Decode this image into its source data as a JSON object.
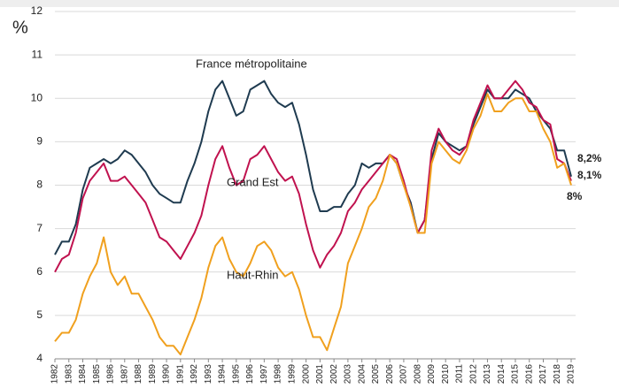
{
  "chart_data": {
    "type": "line",
    "y_unit": "%",
    "x": [
      1982,
      1982.5,
      1983,
      1983.5,
      1984,
      1984.5,
      1985,
      1985.5,
      1986,
      1986.5,
      1987,
      1987.5,
      1988,
      1988.5,
      1989,
      1989.5,
      1990,
      1990.5,
      1991,
      1991.5,
      1992,
      1992.5,
      1993,
      1993.5,
      1994,
      1994.5,
      1995,
      1995.5,
      1996,
      1996.5,
      1997,
      1997.5,
      1998,
      1998.5,
      1999,
      1999.5,
      2000,
      2000.5,
      2001,
      2001.5,
      2002,
      2002.5,
      2003,
      2003.5,
      2004,
      2004.5,
      2005,
      2005.5,
      2006,
      2006.5,
      2007,
      2007.5,
      2008,
      2008.5,
      2009,
      2009.5,
      2010,
      2010.5,
      2011,
      2011.5,
      2012,
      2012.5,
      2013,
      2013.5,
      2014,
      2014.5,
      2015,
      2015.5,
      2016,
      2016.5,
      2017,
      2017.5,
      2018,
      2018.5,
      2019
    ],
    "series": [
      {
        "name": "France métropolitaine",
        "color": "#1f3b50",
        "end_label": "8,2%",
        "values": [
          6.4,
          6.7,
          6.7,
          7.1,
          7.9,
          8.4,
          8.5,
          8.6,
          8.5,
          8.6,
          8.8,
          8.7,
          8.5,
          8.3,
          8.0,
          7.8,
          7.7,
          7.6,
          7.6,
          8.1,
          8.5,
          9.0,
          9.7,
          10.2,
          10.4,
          10.0,
          9.6,
          9.7,
          10.2,
          10.3,
          10.4,
          10.1,
          9.9,
          9.8,
          9.9,
          9.4,
          8.7,
          7.9,
          7.4,
          7.4,
          7.5,
          7.5,
          7.8,
          8.0,
          8.5,
          8.4,
          8.5,
          8.5,
          8.7,
          8.5,
          8.0,
          7.6,
          6.9,
          7.2,
          8.6,
          9.2,
          9.0,
          8.9,
          8.8,
          8.9,
          9.4,
          9.8,
          10.2,
          10.0,
          10.0,
          10.0,
          10.2,
          10.1,
          10.0,
          9.7,
          9.5,
          9.3,
          8.8,
          8.8,
          8.2
        ]
      },
      {
        "name": "Grand Est",
        "color": "#c0124f",
        "end_label": "8,1%",
        "values": [
          6.0,
          6.3,
          6.4,
          6.9,
          7.7,
          8.1,
          8.3,
          8.5,
          8.1,
          8.1,
          8.2,
          8.0,
          7.8,
          7.6,
          7.2,
          6.8,
          6.7,
          6.5,
          6.3,
          6.6,
          6.9,
          7.3,
          8.0,
          8.6,
          8.9,
          8.4,
          8.0,
          8.1,
          8.6,
          8.7,
          8.9,
          8.6,
          8.3,
          8.1,
          8.2,
          7.8,
          7.1,
          6.5,
          6.1,
          6.4,
          6.6,
          6.9,
          7.4,
          7.6,
          7.9,
          8.1,
          8.3,
          8.5,
          8.7,
          8.6,
          8.1,
          7.5,
          6.9,
          7.2,
          8.8,
          9.3,
          9.0,
          8.8,
          8.7,
          8.9,
          9.5,
          9.9,
          10.3,
          10.0,
          10.0,
          10.2,
          10.4,
          10.2,
          9.9,
          9.8,
          9.5,
          9.4,
          8.6,
          8.5,
          8.1
        ]
      },
      {
        "name": "Haut-Rhin",
        "color": "#f0a01e",
        "end_label": "8%",
        "values": [
          4.4,
          4.6,
          4.6,
          4.9,
          5.5,
          5.9,
          6.2,
          6.8,
          6.0,
          5.7,
          5.9,
          5.5,
          5.5,
          5.2,
          4.9,
          4.5,
          4.3,
          4.3,
          4.1,
          4.5,
          4.9,
          5.4,
          6.1,
          6.6,
          6.8,
          6.3,
          6.0,
          5.9,
          6.2,
          6.6,
          6.7,
          6.5,
          6.1,
          5.9,
          6.0,
          5.6,
          5.0,
          4.5,
          4.5,
          4.2,
          4.7,
          5.2,
          6.2,
          6.6,
          7.0,
          7.5,
          7.7,
          8.1,
          8.7,
          8.5,
          8.0,
          7.5,
          6.9,
          6.9,
          8.5,
          9.0,
          8.8,
          8.6,
          8.5,
          8.8,
          9.3,
          9.6,
          10.1,
          9.7,
          9.7,
          9.9,
          10.0,
          10.0,
          9.7,
          9.7,
          9.3,
          9.0,
          8.4,
          8.5,
          8.0
        ]
      }
    ],
    "xlim": [
      1982,
      2019
    ],
    "xticks": [
      1982,
      1983,
      1984,
      1985,
      1986,
      1987,
      1988,
      1989,
      1990,
      1991,
      1992,
      1993,
      1994,
      1995,
      1996,
      1997,
      1998,
      1999,
      2000,
      2001,
      2002,
      2003,
      2004,
      2005,
      2006,
      2007,
      2008,
      2009,
      2010,
      2011,
      2012,
      2013,
      2014,
      2015,
      2016,
      2017,
      2018,
      2019
    ],
    "ylim": [
      4,
      12
    ],
    "yticks": [
      4,
      5,
      6,
      7,
      8,
      9,
      10,
      11,
      12
    ],
    "grid": true
  }
}
